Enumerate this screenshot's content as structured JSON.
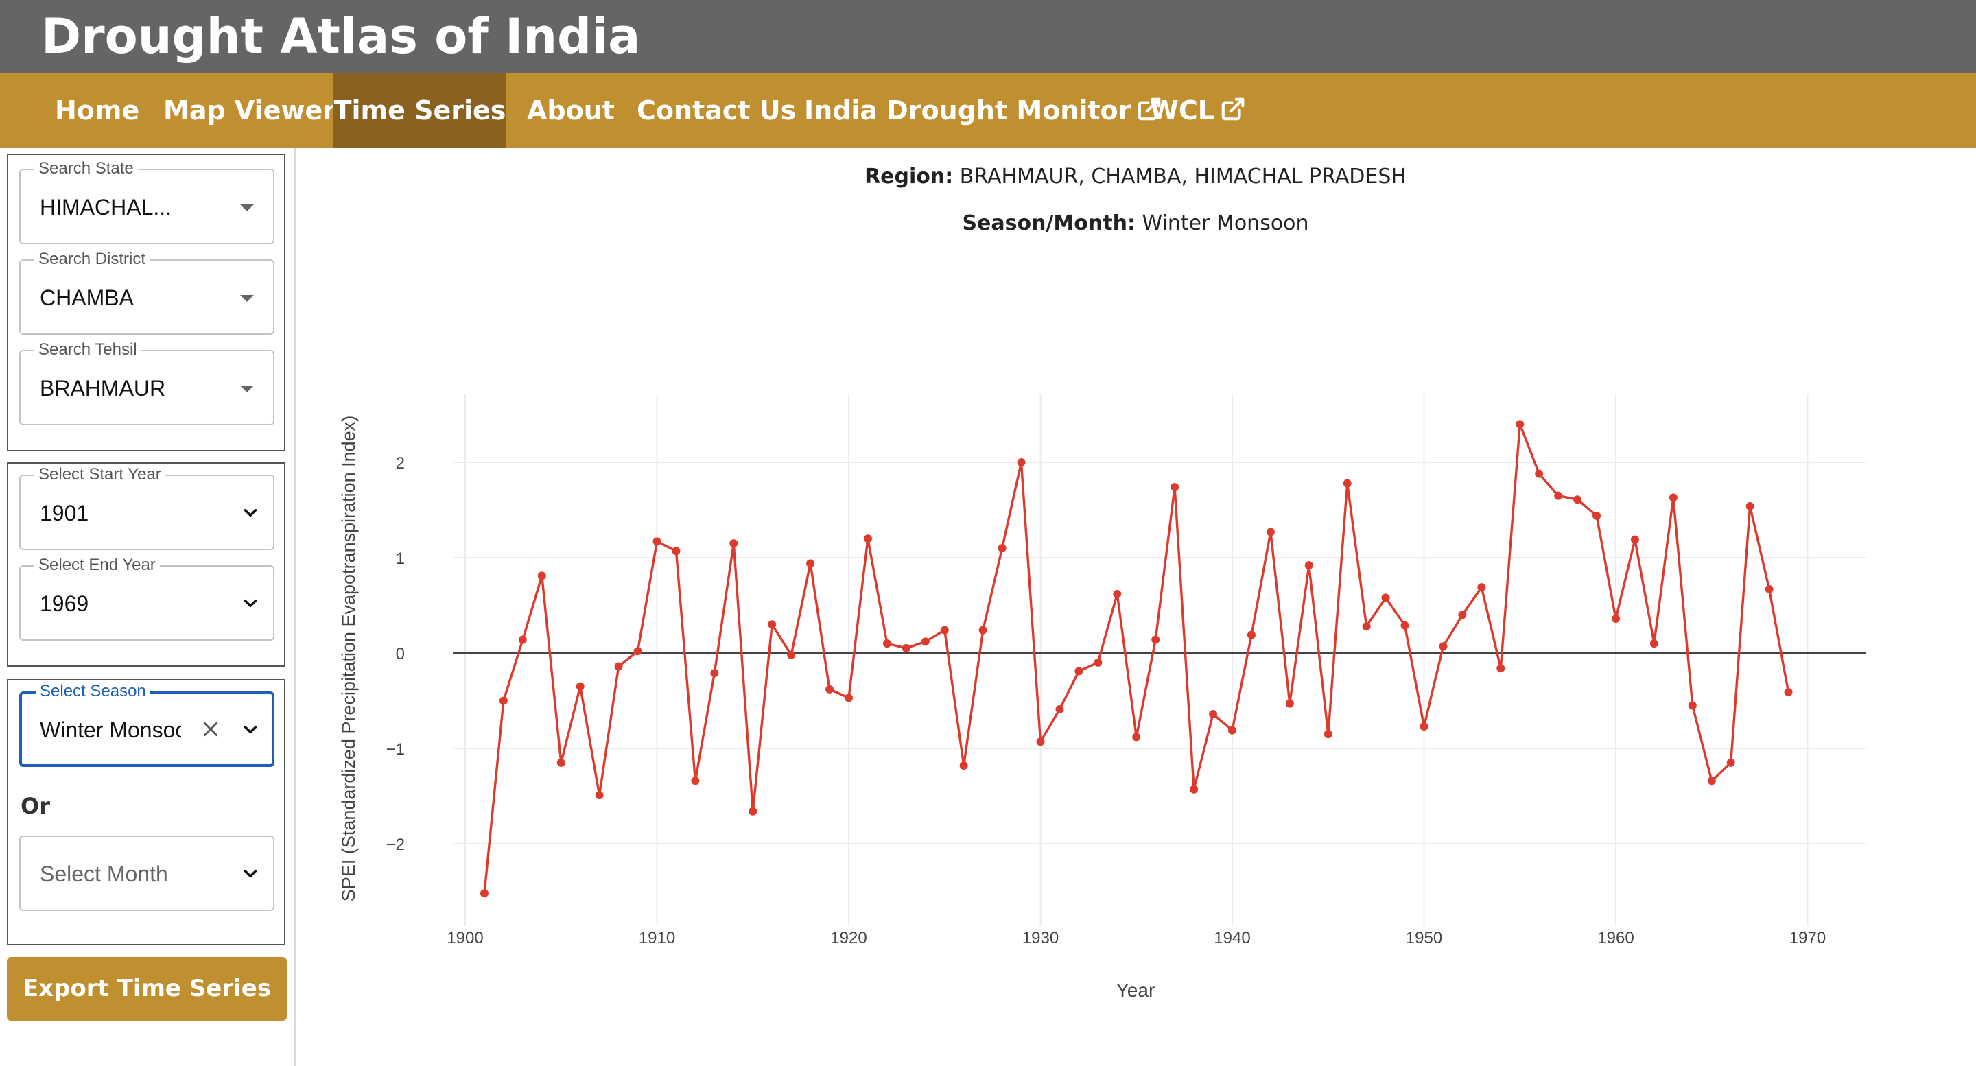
{
  "app": {
    "title": "Drought Atlas of India"
  },
  "nav": [
    {
      "label": "Home",
      "external": false,
      "active": false
    },
    {
      "label": "Map Viewer",
      "external": false,
      "active": false
    },
    {
      "label": "Time Series",
      "external": false,
      "active": true
    },
    {
      "label": "About",
      "external": false,
      "active": false
    },
    {
      "label": "Contact Us",
      "external": false,
      "active": false
    },
    {
      "label": "India Drought Monitor",
      "external": true,
      "active": false
    },
    {
      "label": "WCL",
      "external": true,
      "active": false
    }
  ],
  "sidebar": {
    "location": {
      "state": {
        "label": "Search State",
        "value": "HIMACHAL..."
      },
      "district": {
        "label": "Search District",
        "value": "CHAMBA"
      },
      "tehsil": {
        "label": "Search Tehsil",
        "value": "BRAHMAUR"
      }
    },
    "years": {
      "start": {
        "label": "Select Start Year",
        "value": "1901"
      },
      "end": {
        "label": "Select End Year",
        "value": "1969"
      }
    },
    "season": {
      "label": "Select Season",
      "value": "Winter Monsoon"
    },
    "or_label": "Or",
    "month": {
      "placeholder": "Select Month"
    },
    "export_label": "Export Time Series"
  },
  "chart_header": {
    "region_label": "Region:",
    "region_value": "BRAHMAUR, CHAMBA, HIMACHAL PRADESH",
    "season_label": "Season/Month:",
    "season_value": "Winter Monsoon"
  },
  "colors": {
    "accent": "#c09030",
    "accent_dark": "#8a6220",
    "header": "#656565",
    "series": "#dd3a2e",
    "focus": "#1e5fb8"
  },
  "chart_data": {
    "type": "line",
    "xlabel": "Year",
    "ylabel": "SPEI (Standardized Precipitation Evapotranspiration Index)",
    "x_ticks": [
      1900,
      1910,
      1920,
      1930,
      1940,
      1950,
      1960,
      1970
    ],
    "y_ticks": [
      2,
      1,
      0,
      -1,
      -2
    ],
    "y_tick_labels": [
      "2",
      "1",
      "0",
      "−1",
      "−2"
    ],
    "xlim": [
      1900,
      1970
    ],
    "ylim": [
      -2.6,
      2.7
    ],
    "grid": true,
    "zero_line": true,
    "series": [
      {
        "x": [
          1901,
          1902,
          1903,
          1904,
          1905,
          1906,
          1907,
          1908,
          1909,
          1910,
          1911,
          1912,
          1913,
          1914,
          1915,
          1916,
          1917,
          1918,
          1919,
          1920,
          1921,
          1922,
          1923,
          1924,
          1925,
          1926,
          1927,
          1928,
          1929,
          1930,
          1931,
          1932,
          1933,
          1934,
          1935,
          1936,
          1937,
          1938,
          1939,
          1940,
          1941,
          1942,
          1943,
          1944,
          1945,
          1946,
          1947,
          1948,
          1949,
          1950,
          1951,
          1952,
          1953,
          1954,
          1955,
          1956,
          1957,
          1958,
          1959,
          1960,
          1961,
          1962,
          1963,
          1964,
          1965,
          1966,
          1967,
          1968,
          1969
        ],
        "y": [
          -2.52,
          -0.5,
          0.14,
          0.81,
          -1.15,
          -0.35,
          -1.49,
          -0.14,
          0.02,
          1.17,
          1.07,
          -1.34,
          -0.21,
          1.15,
          -1.66,
          0.3,
          -0.02,
          0.94,
          -0.38,
          -0.47,
          1.2,
          0.1,
          0.05,
          0.12,
          0.24,
          -1.18,
          0.24,
          1.1,
          2.0,
          -0.93,
          -0.59,
          -0.19,
          -0.1,
          0.62,
          -0.88,
          0.14,
          1.74,
          -1.43,
          -0.64,
          -0.81,
          0.19,
          1.27,
          -0.53,
          0.92,
          -0.85,
          1.78,
          0.28,
          0.58,
          0.29,
          -0.77,
          0.07,
          0.4,
          0.69,
          -0.16,
          2.4,
          1.88,
          1.65,
          1.61,
          1.44,
          0.36,
          1.19,
          0.1,
          1.63,
          -0.55,
          -1.34,
          -1.15,
          1.54,
          0.67,
          -0.41
        ]
      }
    ]
  }
}
